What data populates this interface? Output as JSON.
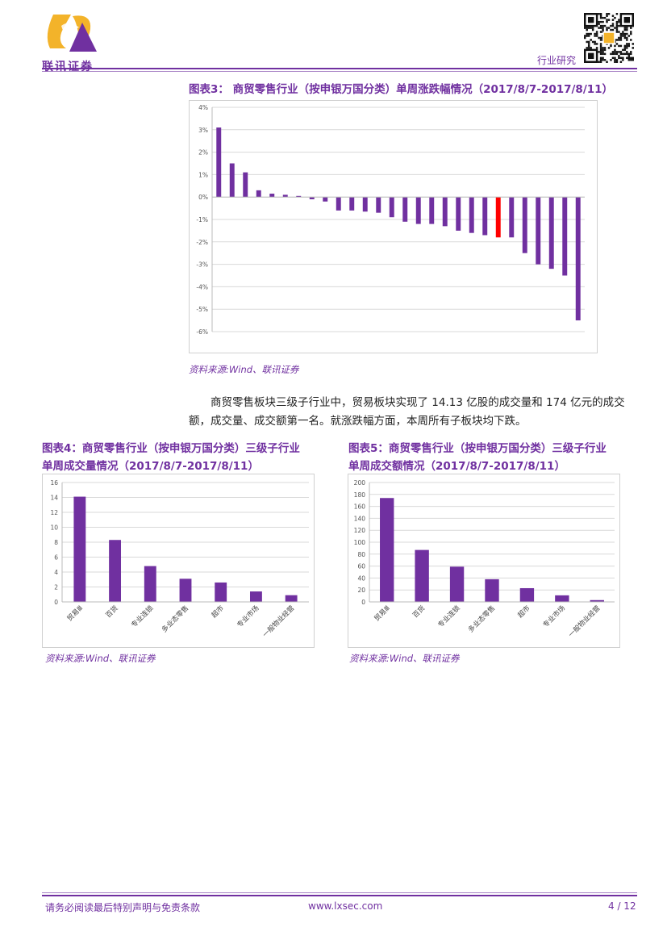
{
  "header": {
    "company_name": "联讯证券",
    "report_type": "行业研究"
  },
  "figure3": {
    "label": "图表3：",
    "title": "商贸零售行业（按申银万国分类）单周涨跌幅情况（2017/8/7-2017/8/11）",
    "source": "资料来源:Wind、联讯证券"
  },
  "body": {
    "paragraph": "商贸零售板块三级子行业中，贸易板块实现了 14.13 亿股的成交量和 174 亿元的成交额，成交量、成交额第一名。就涨跌幅方面，本周所有子板块均下跌。"
  },
  "figure4": {
    "label": "图表4：",
    "title_line1": "商贸零售行业（按申银万国分类）三级子行业",
    "title_line2": "单周成交量情况（2017/8/7-2017/8/11）",
    "source": "资料来源:Wind、联讯证券"
  },
  "figure5": {
    "label": "图表5：",
    "title_line1": "商贸零售行业（按申银万国分类）三级子行业",
    "title_line2": "单周成交额情况（2017/8/7-2017/8/11）",
    "source": "资料来源:Wind、联讯证券"
  },
  "footer": {
    "disclaimer": "请务必阅读最后特别声明与免责条款",
    "website": "www.lxsec.com",
    "page": "4 / 12"
  },
  "chart_data": [
    {
      "type": "bar",
      "chart_id": "fig3",
      "yticks": [
        "4%",
        "3%",
        "2%",
        "1%",
        "0%",
        "-1%",
        "-2%",
        "-3%",
        "-4%",
        "-5%",
        "-6%"
      ],
      "ylim": [
        -6,
        4
      ],
      "values": [
        3.1,
        1.5,
        1.1,
        0.3,
        0.15,
        0.1,
        0.05,
        -0.1,
        -0.2,
        -0.6,
        -0.6,
        -0.65,
        -0.7,
        -0.9,
        -1.1,
        -1.2,
        -1.2,
        -1.3,
        -1.5,
        -1.6,
        -1.7,
        -1.8,
        -1.8,
        -2.5,
        -3.0,
        -3.2,
        -3.5,
        -5.5
      ],
      "highlight_index": 21,
      "bar_color": "#7030a0",
      "highlight_color": "#ff0000",
      "grid": true
    },
    {
      "type": "bar",
      "chart_id": "fig4",
      "categories": [
        "贸易Ⅲ",
        "百货",
        "专业连锁",
        "多业态零售",
        "超市",
        "专业市场",
        "一般物业经营"
      ],
      "values": [
        14.1,
        8.3,
        4.8,
        3.1,
        2.6,
        1.4,
        0.9
      ],
      "yticks": [
        "16",
        "14",
        "12",
        "10",
        "8",
        "6",
        "4",
        "2",
        "0"
      ],
      "ylim": [
        0,
        16
      ],
      "bar_color": "#7030a0",
      "grid": true
    },
    {
      "type": "bar",
      "chart_id": "fig5",
      "categories": [
        "贸易Ⅲ",
        "百货",
        "专业连锁",
        "多业态零售",
        "超市",
        "专业市场",
        "一般物业经营"
      ],
      "values": [
        174,
        87,
        59,
        38,
        23,
        11,
        3
      ],
      "yticks": [
        "200",
        "180",
        "160",
        "140",
        "120",
        "100",
        "80",
        "60",
        "40",
        "20",
        "0"
      ],
      "ylim": [
        0,
        200
      ],
      "bar_color": "#7030a0",
      "grid": true
    }
  ]
}
